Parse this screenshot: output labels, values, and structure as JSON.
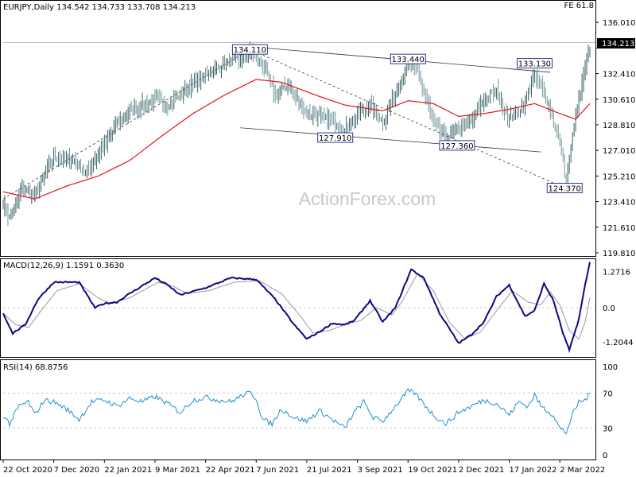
{
  "panels": {
    "price": {
      "header": "EURJPY,Daily  134.542 134.733 133.708 134.213",
      "fe_label": "FE 61.8",
      "current_price": "134.213"
    },
    "macd": {
      "header": "MACD(12,26,9) 1.1591 0.3630"
    },
    "rsi": {
      "header": "RSI(14) 68.8756"
    }
  },
  "watermark": "ActionForex.com",
  "chart_data": [
    {
      "type": "candlestick",
      "title": "EURJPY,Daily",
      "ohlc_last": {
        "open": 134.542,
        "high": 134.733,
        "low": 133.708,
        "close": 134.213
      },
      "ylim": [
        119.81,
        136.8
      ],
      "yticks": [
        "136.010",
        "134.213",
        "132.410",
        "130.610",
        "128.810",
        "127.010",
        "125.210",
        "123.410",
        "121.610",
        "119.810"
      ],
      "x_tick_labels": [
        "22 Oct 2020",
        "7 Dec 2020",
        "22 Jan 2021",
        "9 Mar 2021",
        "22 Apr 2021",
        "7 Jun 2021",
        "21 Jul 2021",
        "3 Sep 2021",
        "19 Oct 2021",
        "2 Dec 2021",
        "17 Jan 2022",
        "2 Mar 2022"
      ],
      "x_tick_idx": [
        0,
        32,
        64,
        96,
        128,
        160,
        192,
        224,
        256,
        288,
        320,
        352
      ],
      "n_bars": 372,
      "close_anchors": [
        [
          0,
          123.3
        ],
        [
          4,
          122.2
        ],
        [
          12,
          124.3
        ],
        [
          20,
          124.0
        ],
        [
          32,
          126.5
        ],
        [
          45,
          126.3
        ],
        [
          52,
          125.4
        ],
        [
          64,
          127.4
        ],
        [
          72,
          128.9
        ],
        [
          80,
          129.8
        ],
        [
          96,
          130.6
        ],
        [
          104,
          130.2
        ],
        [
          112,
          130.9
        ],
        [
          128,
          132.4
        ],
        [
          140,
          133.1
        ],
        [
          152,
          133.5
        ],
        [
          157,
          134.0
        ],
        [
          166,
          132.6
        ],
        [
          172,
          130.8
        ],
        [
          180,
          131.6
        ],
        [
          192,
          129.6
        ],
        [
          208,
          129.1
        ],
        [
          216,
          128.4
        ],
        [
          224,
          129.6
        ],
        [
          232,
          130.2
        ],
        [
          240,
          129.0
        ],
        [
          248,
          131.0
        ],
        [
          256,
          133.0
        ],
        [
          262,
          132.5
        ],
        [
          272,
          129.0
        ],
        [
          280,
          127.9
        ],
        [
          288,
          128.5
        ],
        [
          296,
          129.0
        ],
        [
          304,
          130.6
        ],
        [
          312,
          131.1
        ],
        [
          320,
          129.2
        ],
        [
          328,
          130.0
        ],
        [
          336,
          132.3
        ],
        [
          344,
          130.5
        ],
        [
          352,
          127.6
        ],
        [
          356,
          124.8
        ],
        [
          362,
          129.5
        ],
        [
          368,
          132.7
        ],
        [
          371,
          134.2
        ]
      ],
      "ma_anchors": [
        [
          0,
          124.1
        ],
        [
          20,
          123.6
        ],
        [
          40,
          124.5
        ],
        [
          60,
          125.2
        ],
        [
          80,
          126.3
        ],
        [
          100,
          128.0
        ],
        [
          120,
          129.6
        ],
        [
          140,
          130.9
        ],
        [
          160,
          132.0
        ],
        [
          176,
          131.8
        ],
        [
          200,
          130.8
        ],
        [
          216,
          130.2
        ],
        [
          240,
          129.8
        ],
        [
          256,
          130.5
        ],
        [
          272,
          130.3
        ],
        [
          288,
          129.4
        ],
        [
          304,
          129.6
        ],
        [
          320,
          129.9
        ],
        [
          336,
          130.3
        ],
        [
          352,
          129.6
        ],
        [
          362,
          129.2
        ],
        [
          371,
          130.3
        ]
      ],
      "levels": [
        {
          "label": "134.110",
          "x": 156,
          "y": 134.11
        },
        {
          "label": "133.440",
          "x": 256,
          "y": 133.44
        },
        {
          "label": "133.130",
          "x": 336,
          "y": 133.13
        },
        {
          "label": "127.910",
          "x": 210,
          "y": 127.91
        },
        {
          "label": "127.360",
          "x": 287,
          "y": 127.36
        },
        {
          "label": "124.370",
          "x": 355,
          "y": 124.37
        }
      ],
      "trendlines": [
        {
          "style": "solid",
          "from": [
            156,
            134.3
          ],
          "to": [
            346,
            132.5
          ]
        },
        {
          "style": "solid",
          "from": [
            150,
            128.6
          ],
          "to": [
            340,
            126.9
          ]
        },
        {
          "style": "dashed",
          "from": [
            0,
            123.6
          ],
          "to": [
            156,
            134.11
          ]
        },
        {
          "style": "dashed",
          "from": [
            156,
            134.11
          ],
          "to": [
            355,
            124.37
          ]
        }
      ],
      "fe_level": 134.6
    },
    {
      "type": "line",
      "title": "MACD(12,26,9)",
      "macd": 1.1591,
      "signal": 0.363,
      "ylim": [
        -1.65,
        1.6
      ],
      "yticks": [
        "1.2716",
        "0.0",
        "-1.2044"
      ],
      "macd_anchors": [
        [
          0,
          -0.2
        ],
        [
          6,
          -0.9
        ],
        [
          14,
          -0.6
        ],
        [
          22,
          0.3
        ],
        [
          32,
          0.9
        ],
        [
          48,
          0.9
        ],
        [
          58,
          0.0
        ],
        [
          64,
          0.15
        ],
        [
          72,
          0.2
        ],
        [
          80,
          0.5
        ],
        [
          96,
          1.05
        ],
        [
          104,
          0.8
        ],
        [
          112,
          0.45
        ],
        [
          128,
          0.7
        ],
        [
          144,
          1.05
        ],
        [
          160,
          1.0
        ],
        [
          172,
          0.3
        ],
        [
          184,
          -0.6
        ],
        [
          192,
          -1.1
        ],
        [
          200,
          -0.85
        ],
        [
          208,
          -0.55
        ],
        [
          216,
          -0.6
        ],
        [
          222,
          -0.45
        ],
        [
          232,
          0.25
        ],
        [
          240,
          -0.5
        ],
        [
          248,
          0.0
        ],
        [
          258,
          1.35
        ],
        [
          266,
          1.05
        ],
        [
          276,
          -0.2
        ],
        [
          288,
          -1.25
        ],
        [
          296,
          -0.95
        ],
        [
          304,
          -0.5
        ],
        [
          312,
          0.4
        ],
        [
          320,
          0.8
        ],
        [
          330,
          -0.3
        ],
        [
          336,
          -0.1
        ],
        [
          342,
          0.85
        ],
        [
          348,
          0.25
        ],
        [
          354,
          -0.9
        ],
        [
          358,
          -1.5
        ],
        [
          364,
          -0.4
        ],
        [
          368,
          0.8
        ],
        [
          371,
          1.6
        ]
      ],
      "signal_anchors": [
        [
          0,
          -0.2
        ],
        [
          8,
          -0.6
        ],
        [
          16,
          -0.7
        ],
        [
          24,
          -0.1
        ],
        [
          34,
          0.6
        ],
        [
          48,
          0.85
        ],
        [
          60,
          0.35
        ],
        [
          68,
          0.15
        ],
        [
          80,
          0.35
        ],
        [
          98,
          0.9
        ],
        [
          108,
          0.75
        ],
        [
          116,
          0.5
        ],
        [
          130,
          0.6
        ],
        [
          146,
          0.9
        ],
        [
          162,
          0.95
        ],
        [
          176,
          0.5
        ],
        [
          188,
          -0.3
        ],
        [
          196,
          -0.9
        ],
        [
          206,
          -0.8
        ],
        [
          216,
          -0.6
        ],
        [
          226,
          -0.45
        ],
        [
          236,
          0.0
        ],
        [
          246,
          -0.25
        ],
        [
          252,
          0.2
        ],
        [
          262,
          1.2
        ],
        [
          272,
          0.6
        ],
        [
          282,
          -0.5
        ],
        [
          292,
          -1.1
        ],
        [
          302,
          -0.85
        ],
        [
          312,
          -0.1
        ],
        [
          322,
          0.6
        ],
        [
          332,
          0.2
        ],
        [
          340,
          0.1
        ],
        [
          346,
          0.55
        ],
        [
          352,
          0.1
        ],
        [
          358,
          -0.8
        ],
        [
          364,
          -1.1
        ],
        [
          368,
          -0.5
        ],
        [
          371,
          0.36
        ]
      ]
    },
    {
      "type": "line",
      "title": "RSI(14)",
      "rsi": 68.8756,
      "ylim": [
        0,
        100
      ],
      "yticks": [
        "100",
        "70",
        "30",
        "0"
      ],
      "reference_lines": [
        70,
        30
      ],
      "rsi_anchors": [
        [
          0,
          45
        ],
        [
          4,
          35
        ],
        [
          10,
          55
        ],
        [
          16,
          60
        ],
        [
          20,
          45
        ],
        [
          26,
          62
        ],
        [
          32,
          60
        ],
        [
          40,
          52
        ],
        [
          48,
          40
        ],
        [
          56,
          60
        ],
        [
          64,
          62
        ],
        [
          72,
          55
        ],
        [
          80,
          64
        ],
        [
          88,
          60
        ],
        [
          96,
          66
        ],
        [
          104,
          58
        ],
        [
          112,
          48
        ],
        [
          120,
          62
        ],
        [
          128,
          65
        ],
        [
          136,
          62
        ],
        [
          144,
          60
        ],
        [
          152,
          68
        ],
        [
          156,
          70
        ],
        [
          160,
          64
        ],
        [
          164,
          40
        ],
        [
          170,
          35
        ],
        [
          176,
          52
        ],
        [
          184,
          42
        ],
        [
          192,
          38
        ],
        [
          200,
          50
        ],
        [
          208,
          40
        ],
        [
          216,
          30
        ],
        [
          222,
          48
        ],
        [
          228,
          60
        ],
        [
          234,
          42
        ],
        [
          240,
          38
        ],
        [
          248,
          55
        ],
        [
          256,
          72
        ],
        [
          260,
          70
        ],
        [
          266,
          58
        ],
        [
          272,
          45
        ],
        [
          280,
          35
        ],
        [
          288,
          48
        ],
        [
          296,
          55
        ],
        [
          304,
          62
        ],
        [
          312,
          58
        ],
        [
          320,
          45
        ],
        [
          326,
          60
        ],
        [
          332,
          55
        ],
        [
          336,
          68
        ],
        [
          340,
          55
        ],
        [
          348,
          45
        ],
        [
          352,
          30
        ],
        [
          356,
          25
        ],
        [
          360,
          45
        ],
        [
          364,
          60
        ],
        [
          368,
          62
        ],
        [
          371,
          69
        ]
      ]
    }
  ]
}
